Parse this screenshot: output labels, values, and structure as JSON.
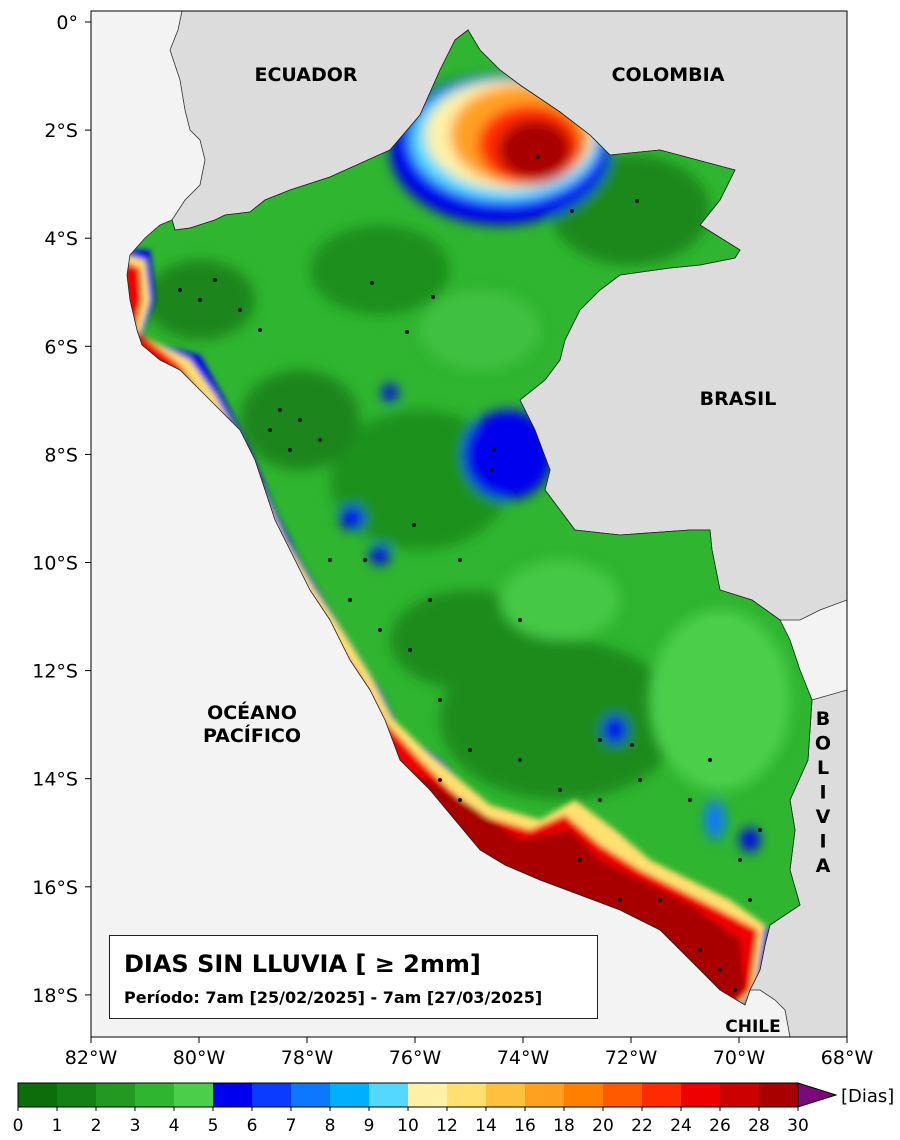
{
  "title": {
    "main": "DIAS SIN LLUVIA [ ≥ 2mm]",
    "period": "Período: 7am [25/02/2025] - 7am [27/03/2025]"
  },
  "labels": {
    "ecuador": "ECUADOR",
    "colombia": "COLOMBIA",
    "brasil": "BRASIL",
    "ocean_line1": "OCÉANO",
    "ocean_line2": "PACÍFICO",
    "bolivia_letters": [
      "B",
      "O",
      "L",
      "I",
      "V",
      "I",
      "A"
    ],
    "chile": "CHILE"
  },
  "axes": {
    "lat_ticks": [
      "0°",
      "2°S",
      "4°S",
      "6°S",
      "8°S",
      "10°S",
      "12°S",
      "14°S",
      "16°S",
      "18°S"
    ],
    "lon_ticks": [
      "82°W",
      "80°W",
      "78°W",
      "76°W",
      "74°W",
      "72°W",
      "70°W",
      "68°W"
    ]
  },
  "colorbar": {
    "unit": "[Dias]",
    "tick_labels": [
      "0",
      "1",
      "2",
      "3",
      "4",
      "5",
      "6",
      "7",
      "8",
      "9",
      "10",
      "12",
      "14",
      "16",
      "18",
      "20",
      "22",
      "24",
      "26",
      "28",
      "30"
    ],
    "colors": [
      "#0b6e0b",
      "#158015",
      "#229a22",
      "#30b530",
      "#4bcf4b",
      "#0000ee",
      "#0a3cff",
      "#0c78ff",
      "#00b0ff",
      "#55d8ff",
      "#fff2a8",
      "#ffe070",
      "#ffc040",
      "#ffa020",
      "#ff8000",
      "#ff5a00",
      "#ff2a00",
      "#ee0000",
      "#cc0000",
      "#a80000"
    ],
    "extend_color": "#7a0a7a"
  },
  "palette": {
    "ocean": "#f3f3f3",
    "neighbor_land": "#dcdcdc",
    "peru_base": "#2fb52f"
  }
}
